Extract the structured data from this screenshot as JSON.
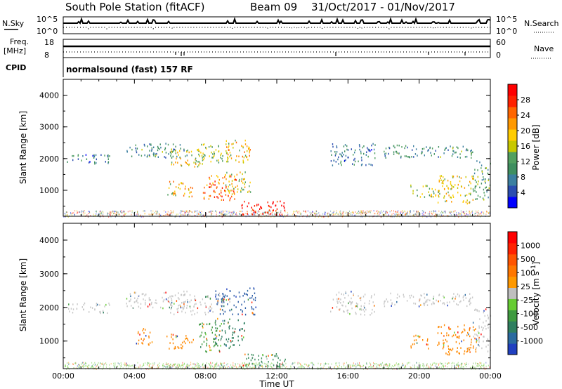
{
  "header": {
    "station": "South Pole Station (fitACF)",
    "beam": "Beam 09",
    "dates": "31/Oct/2017 - 01/Nov/2017"
  },
  "summary_panels": {
    "nsky_label": "N.Sky",
    "nsky_ticks": [
      "10^5",
      "10^0"
    ],
    "nsearch_label": "N.Search",
    "nsearch_ticks": [
      "10^5",
      "10^0"
    ],
    "freq_label": "Freq.",
    "freq_unit": "[MHz]",
    "freq_ticks": [
      "18",
      "8"
    ],
    "nave_label": "Nave",
    "nave_ticks": [
      "60",
      "0"
    ],
    "cpid_label": "CPID",
    "cpid_text": "normalsound (fast) 157 RF"
  },
  "chart_data": [
    {
      "type": "heatmap",
      "parameter": "power",
      "ylabel": "Slant Range [km]",
      "xlabel": "Time UT",
      "x_ticks": [
        "00:00",
        "04:00",
        "08:00",
        "12:00",
        "16:00",
        "20:00",
        "00:00"
      ],
      "y_ticks": [
        "4000",
        "3000",
        "2000",
        "1000"
      ],
      "xlim_hours": [
        0,
        24
      ],
      "ylim_km": [
        180,
        4500
      ],
      "colorbar": {
        "label": "Power [dB]",
        "ticks": [
          "28",
          "24",
          "20",
          "16",
          "12",
          "8",
          "4"
        ],
        "colors": [
          "#0000ff",
          "#2a4db0",
          "#3b7fa0",
          "#3f8f60",
          "#52a060",
          "#c8c800",
          "#ffcc00",
          "#ff9900",
          "#ff6600",
          "#ff2200",
          "#ff0000"
        ]
      },
      "echo_regions": [
        {
          "t0": 0.2,
          "t1": 2.6,
          "r0": 1850,
          "r1": 2150,
          "level": 0.25
        },
        {
          "t0": 3.5,
          "t1": 7.0,
          "r0": 2050,
          "r1": 2500,
          "level": 0.3
        },
        {
          "t0": 6.0,
          "t1": 7.8,
          "r0": 1750,
          "r1": 2300,
          "level": 0.55
        },
        {
          "t0": 7.5,
          "t1": 9.5,
          "r0": 1900,
          "r1": 2500,
          "level": 0.45
        },
        {
          "t0": 9.0,
          "t1": 10.5,
          "r0": 1900,
          "r1": 2600,
          "level": 0.6
        },
        {
          "t0": 5.8,
          "t1": 6.5,
          "r0": 800,
          "r1": 1300,
          "level": 0.6
        },
        {
          "t0": 6.5,
          "t1": 7.3,
          "r0": 800,
          "r1": 1300,
          "level": 0.65
        },
        {
          "t0": 7.8,
          "t1": 9.7,
          "r0": 700,
          "r1": 1500,
          "level": 0.75
        },
        {
          "t0": 9.0,
          "t1": 10.5,
          "r0": 900,
          "r1": 1600,
          "level": 0.55
        },
        {
          "t0": 10.0,
          "t1": 12.5,
          "r0": 250,
          "r1": 700,
          "level": 0.95
        },
        {
          "t0": 15.0,
          "t1": 17.5,
          "r0": 1800,
          "r1": 2500,
          "level": 0.25
        },
        {
          "t0": 18.0,
          "t1": 21.0,
          "r0": 2050,
          "r1": 2450,
          "level": 0.3
        },
        {
          "t0": 21.0,
          "t1": 23.0,
          "r0": 2050,
          "r1": 2450,
          "level": 0.3
        },
        {
          "t0": 19.5,
          "t1": 21.0,
          "r0": 800,
          "r1": 1200,
          "level": 0.5
        },
        {
          "t0": 21.0,
          "t1": 23.0,
          "r0": 600,
          "r1": 1500,
          "level": 0.55
        },
        {
          "t0": 23.0,
          "t1": 24.0,
          "r0": 700,
          "r1": 2000,
          "level": 0.35
        }
      ]
    },
    {
      "type": "heatmap",
      "parameter": "velocity",
      "ylabel": "Slant Range [km]",
      "xlabel": "Time UT",
      "x_ticks": [
        "00:00",
        "04:00",
        "08:00",
        "12:00",
        "16:00",
        "20:00",
        "00:00"
      ],
      "y_ticks": [
        "4000",
        "3000",
        "2000",
        "1000"
      ],
      "xlim_hours": [
        0,
        24
      ],
      "ylim_km": [
        180,
        4500
      ],
      "colorbar": {
        "label": "Velocity [m s^-1]",
        "ticks": [
          "1000",
          "500",
          "100",
          "25",
          "-25",
          "-100",
          "-500",
          "-1000"
        ],
        "colors": [
          "#2040c0",
          "#2a6aa0",
          "#2f7f60",
          "#3f9a40",
          "#66cc33",
          "#bfbfbf",
          "#ff9900",
          "#ff7700",
          "#ff5500",
          "#ff2200",
          "#ff0000"
        ]
      },
      "echo_regions": [
        {
          "t0": 0.2,
          "t1": 2.6,
          "r0": 1850,
          "r1": 2150,
          "color": "#c8c8c8"
        },
        {
          "t0": 3.5,
          "t1": 7.0,
          "r0": 2000,
          "r1": 2500,
          "color": "#c8c8c8"
        },
        {
          "t0": 6.0,
          "t1": 9.0,
          "r0": 1800,
          "r1": 2400,
          "color": "#c8c8c8"
        },
        {
          "t0": 8.5,
          "t1": 10.8,
          "r0": 1800,
          "r1": 2600,
          "color": "#2e5fa8"
        },
        {
          "t0": 4.0,
          "t1": 5.0,
          "r0": 900,
          "r1": 1400,
          "color": "#ff8800"
        },
        {
          "t0": 5.8,
          "t1": 6.5,
          "r0": 800,
          "r1": 1300,
          "color": "#ff8800"
        },
        {
          "t0": 6.5,
          "t1": 7.3,
          "r0": 800,
          "r1": 1200,
          "color": "#ff8800"
        },
        {
          "t0": 7.6,
          "t1": 8.8,
          "r0": 700,
          "r1": 1600,
          "color": "#3f9a40"
        },
        {
          "t0": 8.5,
          "t1": 10.2,
          "r0": 800,
          "r1": 1700,
          "color": "#2f7f60"
        },
        {
          "t0": 10.0,
          "t1": 12.5,
          "r0": 250,
          "r1": 700,
          "color": "#3f8f60"
        },
        {
          "t0": 15.0,
          "t1": 17.5,
          "r0": 1800,
          "r1": 2500,
          "color": "#c8c8c8"
        },
        {
          "t0": 18.0,
          "t1": 23.0,
          "r0": 2050,
          "r1": 2450,
          "color": "#c8c8c8"
        },
        {
          "t0": 19.5,
          "t1": 20.5,
          "r0": 800,
          "r1": 1200,
          "color": "#ff8800"
        },
        {
          "t0": 21.0,
          "t1": 23.2,
          "r0": 600,
          "r1": 1500,
          "color": "#ff8800"
        },
        {
          "t0": 23.0,
          "t1": 24.0,
          "r0": 700,
          "r1": 2000,
          "color": "#c8c8c8"
        }
      ]
    }
  ]
}
